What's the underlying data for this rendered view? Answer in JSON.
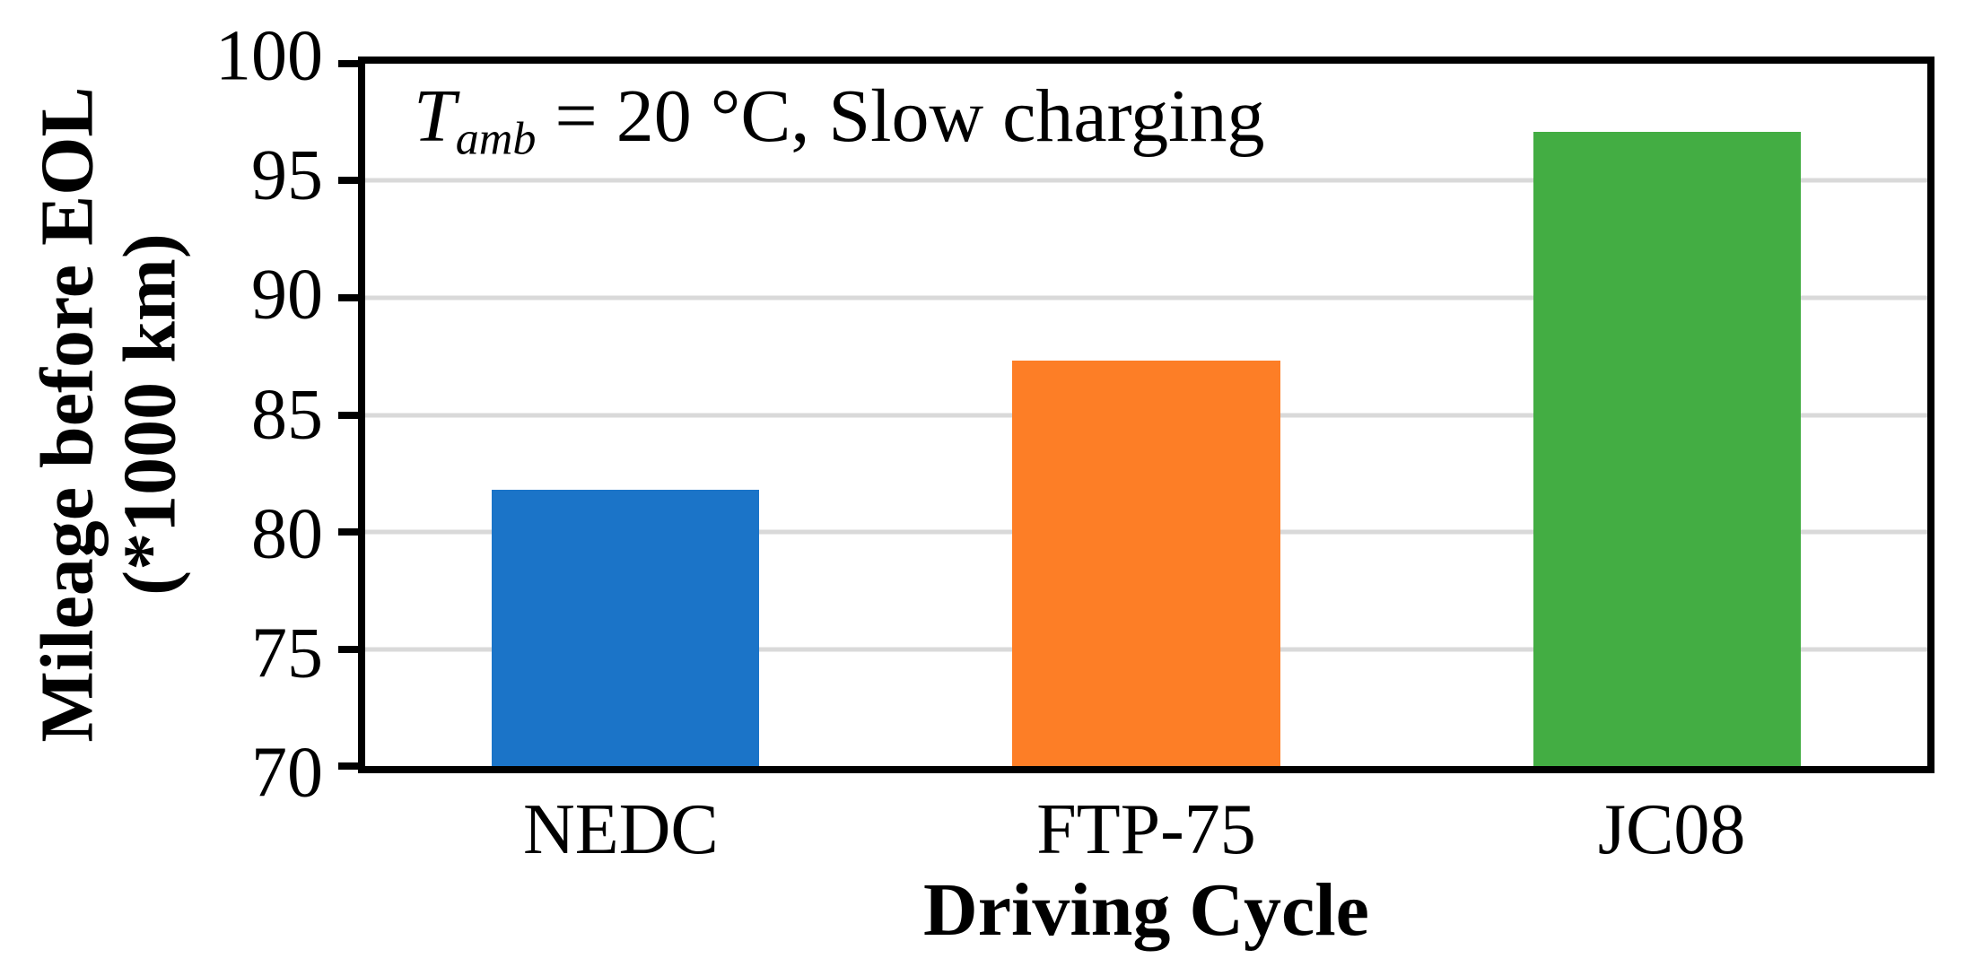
{
  "figure": {
    "background": "#FFFFFF",
    "ylabel_line1": "Mileage before EOL",
    "ylabel_line2": "(*1000 km)",
    "annotation": {
      "variable": "T",
      "subscript": "amb",
      "rest": " = 20 °C, Slow charging"
    }
  },
  "chart_data": {
    "type": "bar",
    "categories": [
      "NEDC",
      "FTP-75",
      "JC08"
    ],
    "values": [
      81.8,
      87.3,
      97.1
    ],
    "bar_colors": [
      "#1B74C8",
      "#FD7E26",
      "#43AD43"
    ],
    "annotation_text": "T_amb = 20 °C, Slow charging",
    "xlabel": "Driving Cycle",
    "ylabel": "Mileage before EOL (*1000 km)",
    "ylim": [
      70,
      100
    ],
    "yticks": [
      70,
      75,
      80,
      85,
      90,
      95,
      100
    ],
    "gridlines_at": [
      75,
      80,
      85,
      90,
      95
    ],
    "grid": true,
    "grid_color": "#D9D9D9",
    "axis_color": "#000000",
    "legend_position": "none"
  }
}
